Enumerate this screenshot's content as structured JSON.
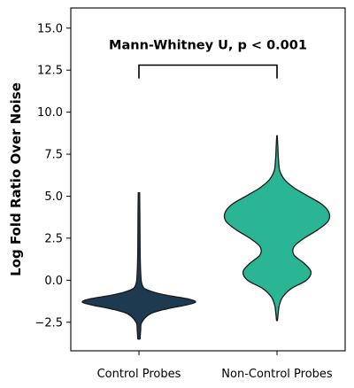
{
  "chart_data": {
    "type": "violin",
    "ylabel": "Log Fold Ratio Over Noise",
    "xlabel": "",
    "ylim": [
      -4.2,
      16.2
    ],
    "yticks": [
      -2.5,
      0.0,
      2.5,
      5.0,
      7.5,
      10.0,
      12.5,
      15.0
    ],
    "ytick_labels": [
      "−2.5",
      "0.0",
      "2.5",
      "5.0",
      "7.5",
      "10.0",
      "12.5",
      "15.0"
    ],
    "categories": [
      "Control Probes",
      "Non-Control Probes"
    ],
    "grid": false,
    "series": [
      {
        "category": "Control Probes",
        "color": "#1d3a50",
        "min": -3.5,
        "max": 5.2,
        "density": [
          [
            -3.5,
            0.02
          ],
          [
            -3.0,
            0.03
          ],
          [
            -2.5,
            0.05
          ],
          [
            -2.0,
            0.2
          ],
          [
            -1.7,
            0.5
          ],
          [
            -1.5,
            0.8
          ],
          [
            -1.3,
            1.0
          ],
          [
            -1.1,
            0.85
          ],
          [
            -0.9,
            0.5
          ],
          [
            -0.7,
            0.25
          ],
          [
            -0.5,
            0.1
          ],
          [
            -0.2,
            0.05
          ],
          [
            0.2,
            0.035
          ],
          [
            1.0,
            0.025
          ],
          [
            2.0,
            0.02
          ],
          [
            3.0,
            0.018
          ],
          [
            4.0,
            0.016
          ],
          [
            5.2,
            0.012
          ]
        ]
      },
      {
        "category": "Non-Control Probes",
        "color": "#2ab595",
        "min": -2.4,
        "max": 8.6,
        "density": [
          [
            -2.4,
            0.008
          ],
          [
            -2.0,
            0.02
          ],
          [
            -1.5,
            0.04
          ],
          [
            -1.0,
            0.1
          ],
          [
            -0.5,
            0.25
          ],
          [
            0.0,
            0.52
          ],
          [
            0.5,
            0.6
          ],
          [
            1.0,
            0.48
          ],
          [
            1.5,
            0.3
          ],
          [
            2.0,
            0.3
          ],
          [
            2.5,
            0.48
          ],
          [
            3.0,
            0.72
          ],
          [
            3.5,
            0.9
          ],
          [
            4.0,
            0.92
          ],
          [
            4.5,
            0.8
          ],
          [
            5.0,
            0.55
          ],
          [
            5.5,
            0.3
          ],
          [
            6.0,
            0.13
          ],
          [
            6.5,
            0.05
          ],
          [
            7.0,
            0.03
          ],
          [
            7.5,
            0.02
          ],
          [
            8.0,
            0.014
          ],
          [
            8.6,
            0.004
          ]
        ]
      }
    ],
    "annotation": {
      "text": "Mann-Whitney U, p < 0.001",
      "bracket_y": 12.8,
      "bracket_drop": 0.8
    },
    "outline_color": "#1a1a1a"
  }
}
